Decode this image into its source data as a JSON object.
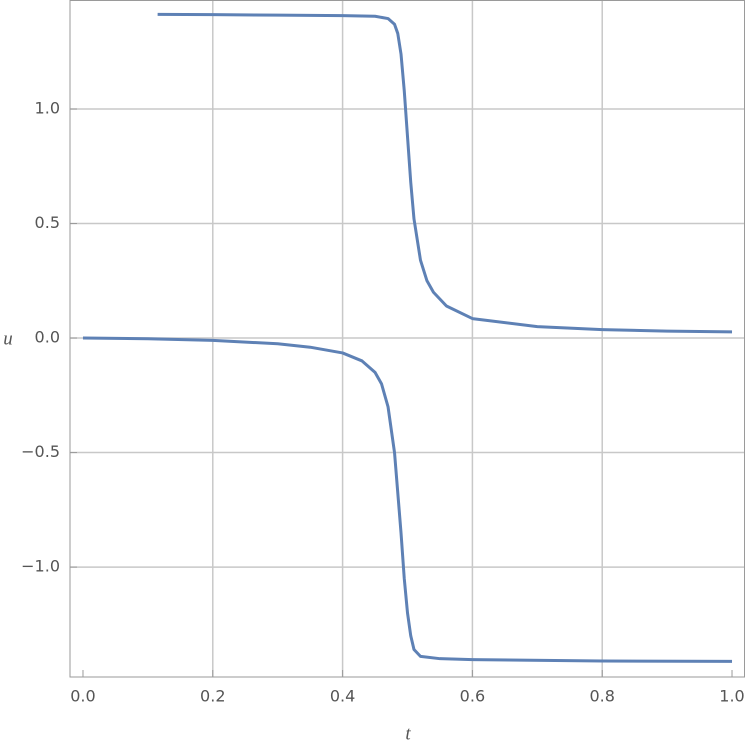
{
  "chart_data": {
    "type": "line",
    "xlabel": "t",
    "ylabel": "u",
    "xlim": [
      -0.02,
      1.02
    ],
    "ylim": [
      -1.48,
      1.476
    ],
    "xticks": [
      {
        "value": 0,
        "label": "0.0"
      },
      0.2,
      0.4,
      0.6,
      0.8,
      {
        "value": 1,
        "label": "1.0"
      }
    ],
    "yticks": [
      {
        "value": -1,
        "label": "−1.0"
      },
      {
        "value": -0.5,
        "label": "−0.5"
      },
      {
        "value": 0,
        "label": "0.0"
      },
      0.5,
      {
        "value": 1,
        "label": "1.0"
      }
    ],
    "xgrid": [
      0.2,
      0.4,
      0.6,
      0.8
    ],
    "ygrid": [
      -1,
      -0.5,
      0,
      0.5,
      1
    ],
    "series": [
      {
        "color": "#5e81b5",
        "x": [
          0.115,
          0.2,
          0.3,
          0.4,
          0.45,
          0.47,
          0.48,
          0.485,
          0.49,
          0.495,
          0.5,
          0.505,
          0.51,
          0.52,
          0.53,
          0.54,
          0.56,
          0.6,
          0.7,
          0.8,
          0.9,
          1.0
        ],
        "values": [
          1.413,
          1.412,
          1.41,
          1.408,
          1.405,
          1.395,
          1.37,
          1.33,
          1.24,
          1.08,
          0.88,
          0.68,
          0.52,
          0.34,
          0.25,
          0.2,
          0.14,
          0.085,
          0.05,
          0.037,
          0.03,
          0.027
        ]
      },
      {
        "color": "#5e81b5",
        "x": [
          0,
          0.1,
          0.2,
          0.3,
          0.35,
          0.4,
          0.43,
          0.45,
          0.46,
          0.47,
          0.48,
          0.49,
          0.495,
          0.5,
          0.505,
          0.51,
          0.52,
          0.55,
          0.6,
          0.8,
          1.0
        ],
        "values": [
          0,
          -0.003,
          -0.01,
          -0.025,
          -0.04,
          -0.065,
          -0.1,
          -0.15,
          -0.2,
          -0.3,
          -0.5,
          -0.85,
          -1.05,
          -1.2,
          -1.3,
          -1.36,
          -1.39,
          -1.4,
          -1.404,
          -1.41,
          -1.412
        ]
      }
    ]
  }
}
